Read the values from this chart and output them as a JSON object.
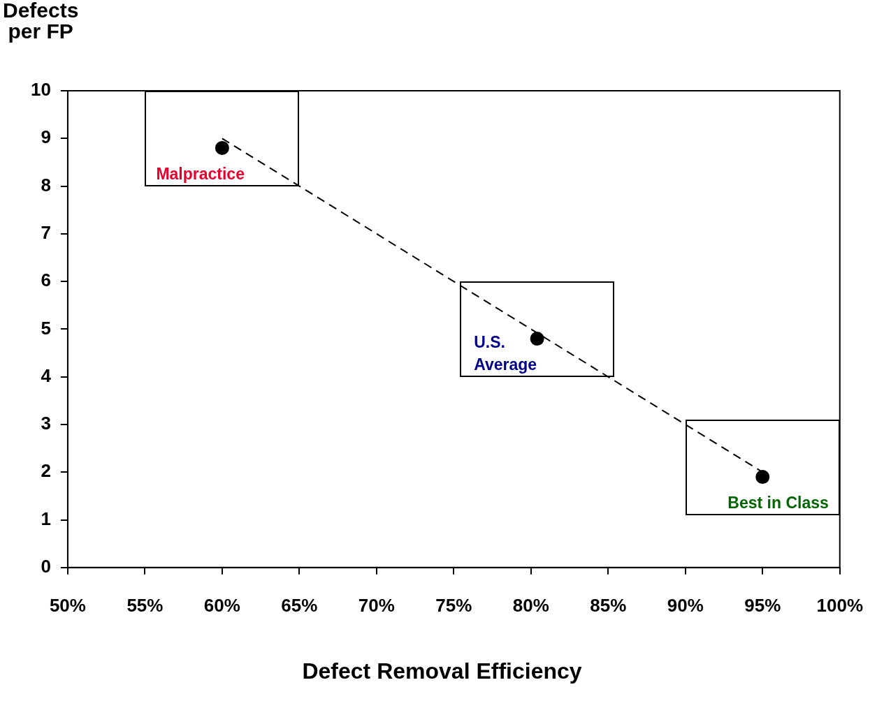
{
  "chart_data": {
    "type": "scatter",
    "xlabel": "Defect Removal Efficiency",
    "ylabel": "Defects\nper FP",
    "xlim": [
      50,
      100
    ],
    "xticks": [
      {
        "value": 50,
        "label": "50%"
      },
      {
        "value": 55,
        "label": "55%"
      },
      {
        "value": 60,
        "label": "60%"
      },
      {
        "value": 65,
        "label": "65%"
      },
      {
        "value": 70,
        "label": "70%"
      },
      {
        "value": 75,
        "label": "75%"
      },
      {
        "value": 80,
        "label": "80%"
      },
      {
        "value": 85,
        "label": "85%"
      },
      {
        "value": 90,
        "label": "90%"
      },
      {
        "value": 95,
        "label": "95%"
      },
      {
        "value": 100,
        "label": "100%"
      }
    ],
    "ylim": [
      0,
      10
    ],
    "yticks": [
      0,
      1,
      2,
      3,
      4,
      5,
      6,
      7,
      8,
      9,
      10
    ],
    "grid": false,
    "legend": false,
    "series": [
      {
        "color": "#000000",
        "x": [
          60,
          80.4,
          95
        ],
        "values": [
          8.8,
          4.8,
          1.9
        ],
        "marker": "circle"
      },
      {
        "type": "line",
        "color": "#000000",
        "x": [
          60,
          95
        ],
        "values": [
          9,
          2
        ],
        "marker": "none",
        "line_style": "dashed"
      }
    ],
    "annotations": [
      {
        "text": "Malpractice",
        "x": 60,
        "y": 8.8
      },
      {
        "text": "U.S.\nAverage",
        "x": 80.4,
        "y": 4.8
      },
      {
        "text": "Best in Class",
        "x": 95,
        "y": 1.9
      }
    ]
  }
}
